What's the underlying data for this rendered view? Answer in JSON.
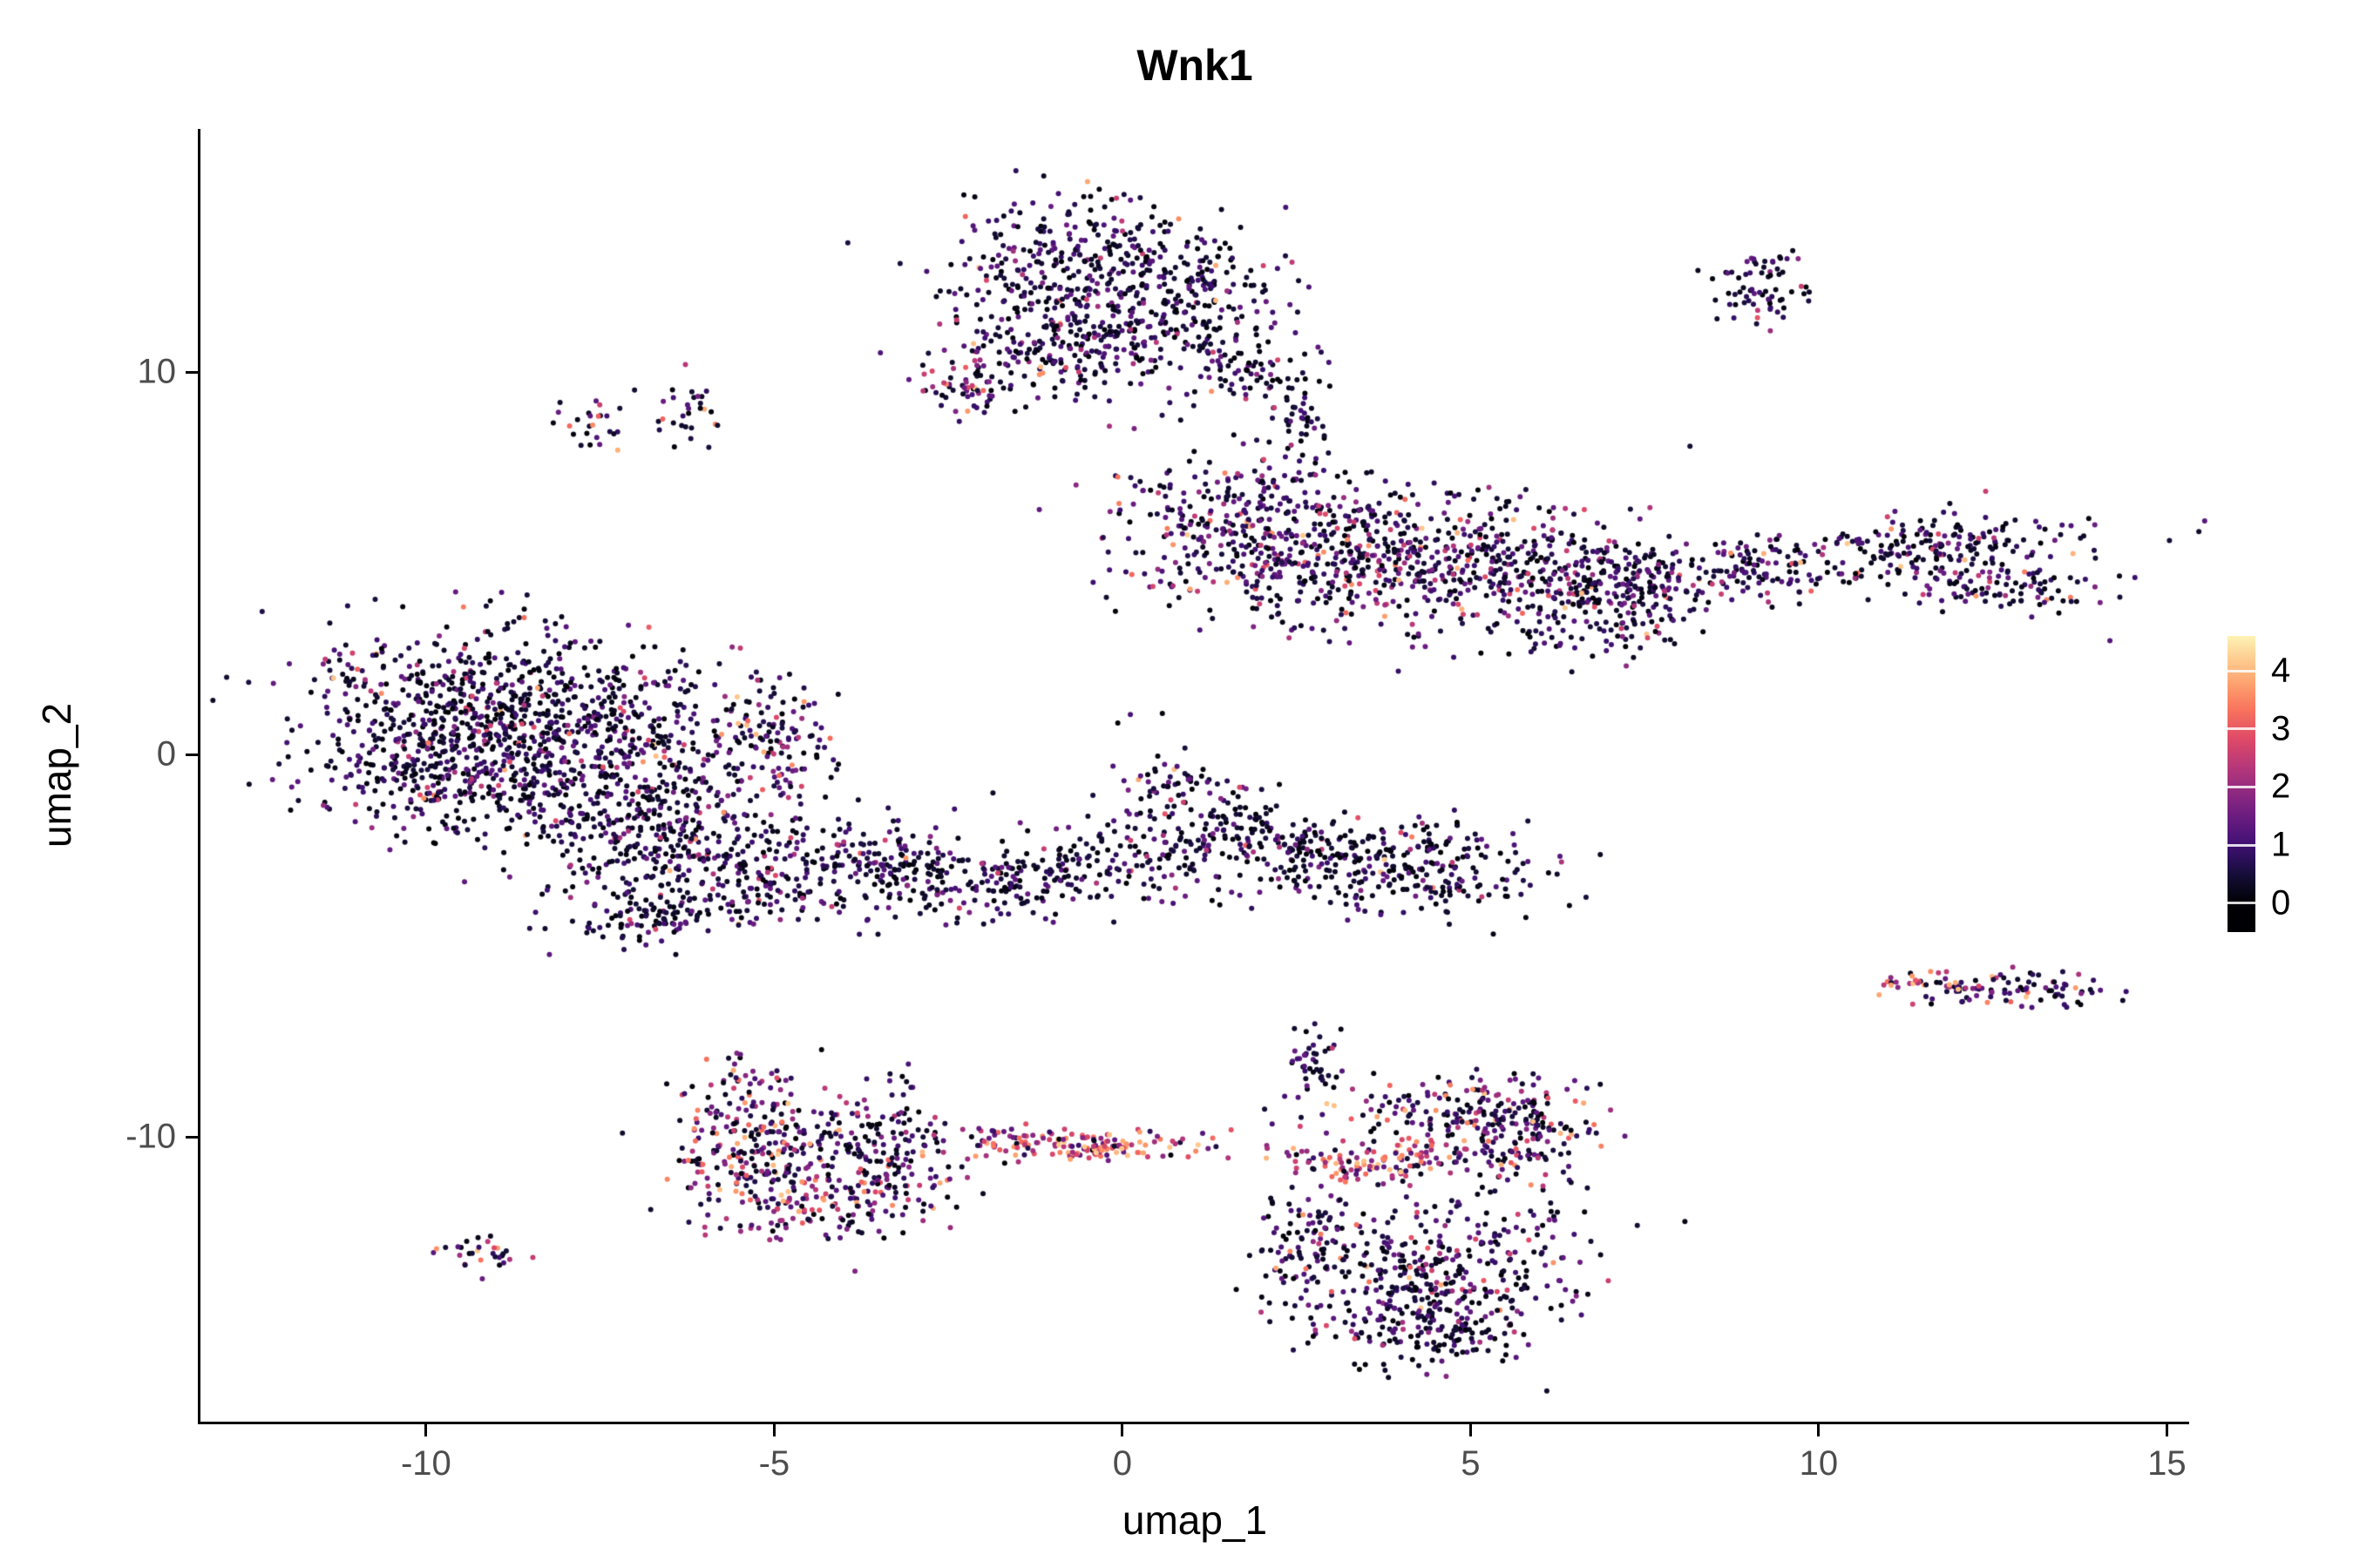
{
  "chart_data": {
    "type": "scatter",
    "title": "Wnk1",
    "xlabel": "umap_1",
    "ylabel": "umap_2",
    "xlim": [
      -13.24,
      15.32
    ],
    "ylim": [
      -17.45,
      16.36
    ],
    "xticks": {
      "values": [
        -10,
        -5,
        0,
        5,
        10,
        15
      ],
      "labels": [
        "-10",
        "-5",
        "0",
        "5",
        "10",
        "15"
      ]
    },
    "yticks": {
      "values": [
        -10,
        0,
        10
      ],
      "labels": [
        "-10",
        "0",
        "10"
      ]
    },
    "grid": false,
    "background": "#ffffff",
    "axis_color": "#000000",
    "tick_label_color": "#4d4d4d",
    "legend": {
      "position": "right",
      "tick_labels": [
        "4",
        "3",
        "2",
        "1",
        "0"
      ],
      "tick_values": [
        4,
        3,
        2,
        1,
        0
      ],
      "vmin": -0.5,
      "vmax": 4.6,
      "color_value_max": 4.7
    },
    "palette": {
      "name": "magma",
      "stops": [
        [
          0.0,
          "#000004"
        ],
        [
          0.1,
          "#140e36"
        ],
        [
          0.2,
          "#3b0f70"
        ],
        [
          0.3,
          "#641a80"
        ],
        [
          0.4,
          "#8c2981"
        ],
        [
          0.5,
          "#b73779"
        ],
        [
          0.6,
          "#de4968"
        ],
        [
          0.7,
          "#f7705c"
        ],
        [
          0.8,
          "#fe9f6d"
        ],
        [
          0.9,
          "#fecf92"
        ],
        [
          1.0,
          "#fcfdbf"
        ]
      ]
    },
    "point_radius_px": 3.0,
    "expression_bands": [
      [
        0,
        0.55
      ],
      [
        0.55,
        1.5
      ],
      [
        1.5,
        2.8
      ],
      [
        2.8,
        4.2
      ]
    ],
    "cluster_fields": [
      "cx",
      "cy",
      "sx",
      "sy",
      "rot_deg",
      "n",
      "band_weights"
    ],
    "clusters": [
      [
        -0.5,
        12.9,
        1.05,
        0.85,
        0,
        320,
        [
          58,
          36,
          5,
          1
        ]
      ],
      [
        0.6,
        11.4,
        0.95,
        0.9,
        0,
        260,
        [
          55,
          38,
          6,
          1
        ]
      ],
      [
        -1.1,
        10.7,
        0.8,
        0.7,
        0,
        180,
        [
          52,
          38,
          8,
          2
        ]
      ],
      [
        -2.25,
        9.6,
        0.35,
        0.4,
        0,
        55,
        [
          30,
          38,
          20,
          12
        ]
      ],
      [
        1.9,
        9.9,
        0.5,
        0.4,
        0,
        55,
        [
          55,
          38,
          6,
          1
        ]
      ],
      [
        2.55,
        9.0,
        0.18,
        0.5,
        0,
        35,
        [
          68,
          28,
          3,
          1
        ]
      ],
      [
        9.1,
        12.2,
        0.38,
        0.45,
        0,
        70,
        [
          50,
          38,
          9,
          3
        ]
      ],
      [
        2.0,
        5.9,
        1.05,
        1.0,
        0,
        420,
        [
          38,
          40,
          15,
          7
        ]
      ],
      [
        4.2,
        5.0,
        1.3,
        0.9,
        0,
        450,
        [
          42,
          38,
          14,
          6
        ]
      ],
      [
        6.3,
        4.7,
        0.9,
        0.7,
        0,
        200,
        [
          50,
          36,
          11,
          3
        ]
      ],
      [
        7.3,
        3.9,
        0.5,
        0.5,
        0,
        70,
        [
          52,
          36,
          9,
          3
        ]
      ],
      [
        8.9,
        4.8,
        1.2,
        0.45,
        14,
        200,
        [
          52,
          36,
          9,
          3
        ]
      ],
      [
        11.8,
        5.5,
        1.1,
        0.38,
        8,
        170,
        [
          50,
          35,
          11,
          4
        ]
      ],
      [
        12.4,
        4.4,
        0.85,
        0.35,
        -12,
        110,
        [
          48,
          36,
          12,
          4
        ]
      ],
      [
        6.6,
        3.2,
        0.8,
        0.35,
        0,
        50,
        [
          55,
          35,
          8,
          2
        ]
      ],
      [
        -9.3,
        1.4,
        1.3,
        1.0,
        0,
        500,
        [
          60,
          33,
          5,
          2
        ]
      ],
      [
        -7.6,
        0.3,
        1.25,
        1.1,
        0,
        460,
        [
          56,
          36,
          6,
          2
        ]
      ],
      [
        -9.9,
        -0.6,
        0.9,
        0.8,
        0,
        250,
        [
          58,
          35,
          5,
          2
        ]
      ],
      [
        -7.0,
        -1.9,
        1.0,
        0.8,
        0,
        280,
        [
          50,
          38,
          9,
          3
        ]
      ],
      [
        -5.6,
        -3.3,
        0.9,
        0.65,
        -20,
        200,
        [
          52,
          37,
          8,
          3
        ]
      ],
      [
        -6.9,
        -4.3,
        0.7,
        0.35,
        0,
        90,
        [
          60,
          33,
          5,
          2
        ]
      ],
      [
        -5.0,
        0.4,
        0.5,
        0.85,
        0,
        130,
        [
          42,
          38,
          14,
          6
        ]
      ],
      [
        -7.6,
        8.7,
        0.25,
        0.35,
        0,
        25,
        [
          55,
          32,
          8,
          5
        ]
      ],
      [
        -6.3,
        8.9,
        0.27,
        0.5,
        0,
        30,
        [
          48,
          34,
          11,
          7
        ]
      ],
      [
        -3.6,
        -2.7,
        0.85,
        0.6,
        0,
        150,
        [
          55,
          35,
          8,
          2
        ]
      ],
      [
        -2.2,
        -3.4,
        0.8,
        0.5,
        0,
        130,
        [
          60,
          32,
          6,
          2
        ]
      ],
      [
        -0.8,
        -2.9,
        0.7,
        0.5,
        0,
        110,
        [
          55,
          35,
          8,
          2
        ]
      ],
      [
        0.9,
        -2.4,
        0.6,
        0.6,
        0,
        120,
        [
          60,
          32,
          6,
          2
        ]
      ],
      [
        0.6,
        -0.7,
        0.4,
        0.3,
        0,
        40,
        [
          42,
          38,
          14,
          6
        ]
      ],
      [
        1.6,
        -1.3,
        0.3,
        0.4,
        0,
        35,
        [
          52,
          36,
          9,
          3
        ]
      ],
      [
        3.9,
        -3.0,
        1.05,
        0.6,
        0,
        300,
        [
          62,
          31,
          5,
          2
        ]
      ],
      [
        2.4,
        -2.2,
        0.5,
        0.35,
        0,
        60,
        [
          55,
          35,
          8,
          2
        ]
      ],
      [
        -5.5,
        -9.1,
        0.5,
        0.6,
        0,
        90,
        [
          32,
          34,
          20,
          14
        ]
      ],
      [
        -5.3,
        -10.7,
        0.6,
        0.6,
        0,
        130,
        [
          24,
          30,
          26,
          20
        ]
      ],
      [
        -4.2,
        -11.7,
        0.8,
        0.5,
        10,
        150,
        [
          28,
          30,
          24,
          18
        ]
      ],
      [
        -3.4,
        -10.4,
        0.5,
        0.8,
        0,
        140,
        [
          45,
          33,
          14,
          8
        ]
      ],
      [
        -4.6,
        -9.9,
        0.6,
        0.5,
        0,
        60,
        [
          50,
          30,
          12,
          8
        ]
      ],
      [
        -0.4,
        -10.25,
        0.85,
        0.22,
        0,
        140,
        [
          6,
          14,
          34,
          46
        ]
      ],
      [
        -1.7,
        -10.1,
        0.4,
        0.2,
        0,
        30,
        [
          22,
          30,
          28,
          20
        ]
      ],
      [
        4.8,
        -9.4,
        0.9,
        0.5,
        0,
        180,
        [
          42,
          34,
          14,
          10
        ]
      ],
      [
        3.8,
        -10.6,
        0.8,
        0.28,
        0,
        120,
        [
          10,
          20,
          30,
          40
        ]
      ],
      [
        5.8,
        -10.1,
        0.5,
        0.7,
        0,
        120,
        [
          42,
          35,
          14,
          9
        ]
      ],
      [
        4.6,
        -13.4,
        1.0,
        1.0,
        0,
        380,
        [
          52,
          34,
          10,
          4
        ]
      ],
      [
        2.6,
        -12.7,
        0.45,
        0.8,
        0,
        90,
        [
          56,
          32,
          9,
          3
        ]
      ],
      [
        4.3,
        -15.1,
        0.8,
        0.45,
        0,
        120,
        [
          56,
          32,
          9,
          3
        ]
      ],
      [
        2.75,
        -7.9,
        0.2,
        0.5,
        0,
        40,
        [
          60,
          31,
          7,
          2
        ]
      ],
      [
        -9.3,
        -13.1,
        0.3,
        0.25,
        0,
        30,
        [
          36,
          34,
          19,
          11
        ]
      ],
      [
        12.7,
        -6.15,
        0.7,
        0.25,
        0,
        90,
        [
          42,
          34,
          15,
          9
        ]
      ],
      [
        11.5,
        -6.0,
        0.3,
        0.15,
        0,
        25,
        [
          20,
          26,
          29,
          25
        ]
      ],
      [
        0.2,
        1.0,
        0.15,
        0.12,
        0,
        3,
        [
          60,
          40,
          0,
          0
        ]
      ]
    ]
  }
}
